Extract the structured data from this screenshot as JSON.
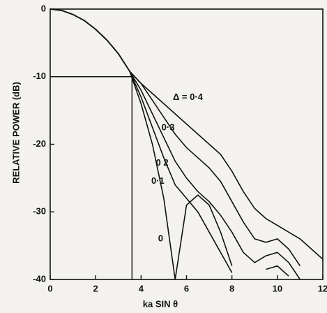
{
  "chart_data": {
    "type": "line",
    "x_label": "ka SIN θ",
    "y_label": "RELATIVE POWER (dB)",
    "x": [
      0,
      0.5,
      1,
      1.5,
      2,
      2.5,
      3,
      3.5,
      4,
      4.5,
      5,
      5.5,
      6,
      6.5,
      7,
      7.5,
      8,
      8.5,
      9,
      9.5,
      10,
      10.5,
      11,
      11.5,
      12
    ],
    "series": [
      {
        "name": "0",
        "color": "#111111",
        "values": [
          0,
          -0.2,
          -0.8,
          -1.7,
          -3,
          -4.6,
          -6.6,
          -9.2,
          -14,
          -20,
          -28,
          -40,
          -29,
          -27.5,
          -29,
          -33,
          -38,
          null,
          null,
          null,
          null,
          null,
          null,
          null,
          null
        ]
      },
      {
        "name": "0·1",
        "color": "#111111",
        "values": [
          0,
          -0.2,
          -0.8,
          -1.7,
          -3,
          -4.6,
          -6.6,
          -9.2,
          -13,
          -17.5,
          -22,
          -26,
          -28,
          -30,
          -33,
          -36,
          -39,
          null,
          null,
          -38.5,
          -38,
          -39.5,
          null,
          null,
          null
        ]
      },
      {
        "name": "0 2",
        "color": "#111111",
        "values": [
          0,
          -0.2,
          -0.8,
          -1.7,
          -3,
          -4.6,
          -6.6,
          -9.2,
          -12,
          -15.5,
          -19,
          -22.5,
          -25,
          -27,
          -28.5,
          -30.5,
          -33,
          -36,
          -37.5,
          -36.5,
          -36,
          -37.5,
          -40,
          null,
          null
        ]
      },
      {
        "name": "0·3",
        "color": "#111111",
        "values": [
          0,
          -0.2,
          -0.8,
          -1.7,
          -3,
          -4.6,
          -6.6,
          -9.2,
          -11,
          -13.5,
          -16,
          -18.5,
          -20.5,
          -22,
          -23.5,
          -25.5,
          -28.5,
          -31.5,
          -34,
          -34.5,
          -34,
          -35.5,
          -38,
          null,
          null
        ]
      },
      {
        "name": "Δ = 0·4",
        "color": "#111111",
        "values": [
          0,
          -0.2,
          -0.8,
          -1.7,
          -3,
          -4.6,
          -6.6,
          -9.2,
          -11,
          -12.5,
          -14,
          -15.5,
          -17,
          -18.5,
          -20,
          -21.5,
          -24,
          -27,
          -29.5,
          -31,
          -32,
          -33,
          -34,
          -35.5,
          -37
        ]
      }
    ],
    "reference_lines": {
      "x": 3.6,
      "y": -10
    },
    "xlim": [
      0,
      12
    ],
    "ylim": [
      -40,
      0
    ],
    "xticks": [
      0,
      2,
      4,
      6,
      8,
      10,
      12
    ],
    "yticks": [
      0,
      -10,
      -20,
      -30,
      -40
    ]
  }
}
